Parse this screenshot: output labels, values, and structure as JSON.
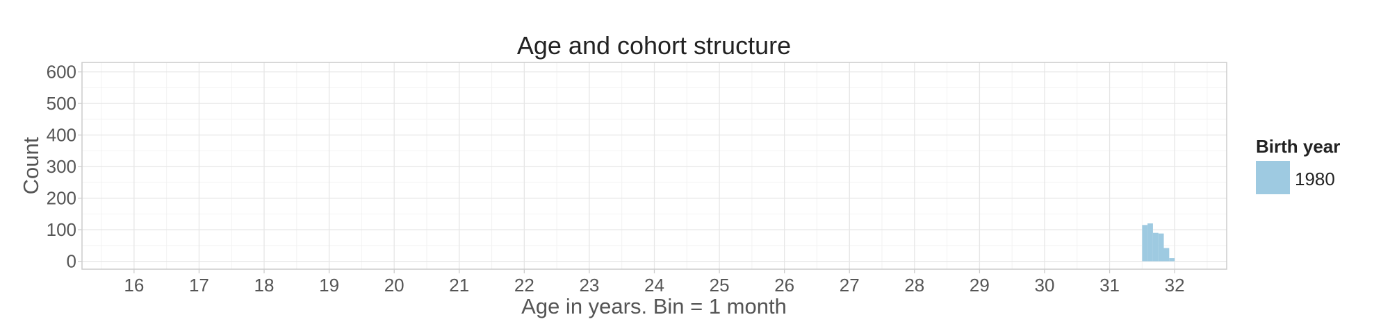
{
  "chart_data": {
    "type": "bar",
    "title": "Age and cohort structure",
    "xlabel": "Age in years. Bin = 1 month",
    "ylabel": "Count",
    "xlim": [
      15.2,
      32.8
    ],
    "ylim": [
      -25,
      630
    ],
    "x_ticks": [
      16,
      17,
      18,
      19,
      20,
      21,
      22,
      23,
      24,
      25,
      26,
      27,
      28,
      29,
      30,
      31,
      32
    ],
    "y_ticks": [
      0,
      100,
      200,
      300,
      400,
      500,
      600
    ],
    "bin_width": 0.0833,
    "grid": true,
    "legend_position": "right",
    "legend_title": "Birth year",
    "series": [
      {
        "name": "1980",
        "color": "#9ecae1",
        "bins": [
          {
            "x": 31.5,
            "y": 115
          },
          {
            "x": 31.583,
            "y": 120
          },
          {
            "x": 31.667,
            "y": 90
          },
          {
            "x": 31.75,
            "y": 88
          },
          {
            "x": 31.833,
            "y": 42
          },
          {
            "x": 31.917,
            "y": 10
          }
        ]
      }
    ]
  }
}
